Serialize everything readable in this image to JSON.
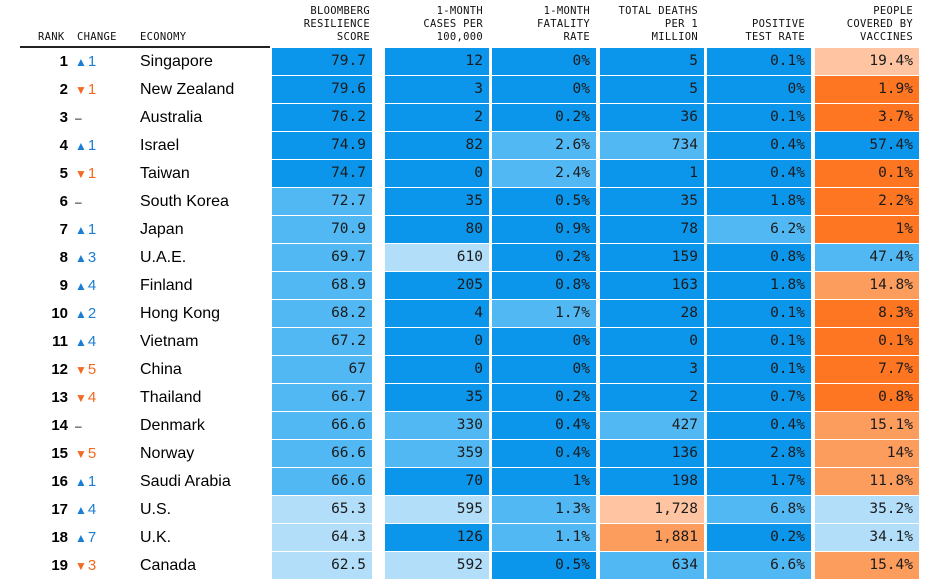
{
  "headers": {
    "rank": "RANK",
    "change": "CHANGE",
    "economy": "ECONOMY",
    "score": "BLOOMBERG\nRESILIENCE\nSCORE",
    "cases": "1-MONTH\nCASES PER\n100,000",
    "fatality": "1-MONTH\nFATALITY\nRATE",
    "deaths": "TOTAL DEATHS\nPER 1\nMILLION",
    "positive": "POSITIVE\nTEST RATE",
    "vaccines": "PEOPLE\nCOVERED BY\nVACCINES"
  },
  "colors": {
    "blue_dark": "#0b96ec",
    "blue_mid": "#52b8f4",
    "blue_light": "#b2def9",
    "orange_dark": "#fe7622",
    "orange_mid": "#fc9d5e",
    "orange_light": "#ffc5a2",
    "up": "#1a7fd4",
    "down": "#f26b21"
  },
  "rows": [
    {
      "rank": "1",
      "dir": "up",
      "chg": "1",
      "economy": "Singapore",
      "score": "79.7",
      "cases": "12",
      "fatality": "0%",
      "deaths": "5",
      "positive": "0.1%",
      "vaccines": "19.4%",
      "shades": [
        "blue_dark",
        "blue_dark",
        "blue_dark",
        "blue_dark",
        "blue_dark",
        "orange_light"
      ]
    },
    {
      "rank": "2",
      "dir": "down",
      "chg": "1",
      "economy": "New Zealand",
      "score": "79.6",
      "cases": "3",
      "fatality": "0%",
      "deaths": "5",
      "positive": "0%",
      "vaccines": "1.9%",
      "shades": [
        "blue_dark",
        "blue_dark",
        "blue_dark",
        "blue_dark",
        "blue_dark",
        "orange_dark"
      ]
    },
    {
      "rank": "3",
      "dir": "same",
      "chg": "",
      "economy": "Australia",
      "score": "76.2",
      "cases": "2",
      "fatality": "0.2%",
      "deaths": "36",
      "positive": "0.1%",
      "vaccines": "3.7%",
      "shades": [
        "blue_dark",
        "blue_dark",
        "blue_dark",
        "blue_dark",
        "blue_dark",
        "orange_dark"
      ]
    },
    {
      "rank": "4",
      "dir": "up",
      "chg": "1",
      "economy": "Israel",
      "score": "74.9",
      "cases": "82",
      "fatality": "2.6%",
      "deaths": "734",
      "positive": "0.4%",
      "vaccines": "57.4%",
      "shades": [
        "blue_dark",
        "blue_dark",
        "blue_mid",
        "blue_mid",
        "blue_dark",
        "blue_dark"
      ]
    },
    {
      "rank": "5",
      "dir": "down",
      "chg": "1",
      "economy": "Taiwan",
      "score": "74.7",
      "cases": "0",
      "fatality": "2.4%",
      "deaths": "1",
      "positive": "0.4%",
      "vaccines": "0.1%",
      "shades": [
        "blue_dark",
        "blue_dark",
        "blue_mid",
        "blue_dark",
        "blue_dark",
        "orange_dark"
      ]
    },
    {
      "rank": "6",
      "dir": "same",
      "chg": "",
      "economy": "South Korea",
      "score": "72.7",
      "cases": "35",
      "fatality": "0.5%",
      "deaths": "35",
      "positive": "1.8%",
      "vaccines": "2.2%",
      "shades": [
        "blue_mid",
        "blue_dark",
        "blue_dark",
        "blue_dark",
        "blue_dark",
        "orange_dark"
      ]
    },
    {
      "rank": "7",
      "dir": "up",
      "chg": "1",
      "economy": "Japan",
      "score": "70.9",
      "cases": "80",
      "fatality": "0.9%",
      "deaths": "78",
      "positive": "6.2%",
      "vaccines": "1%",
      "shades": [
        "blue_mid",
        "blue_dark",
        "blue_dark",
        "blue_dark",
        "blue_mid",
        "orange_dark"
      ]
    },
    {
      "rank": "8",
      "dir": "up",
      "chg": "3",
      "economy": "U.A.E.",
      "score": "69.7",
      "cases": "610",
      "fatality": "0.2%",
      "deaths": "159",
      "positive": "0.8%",
      "vaccines": "47.4%",
      "shades": [
        "blue_mid",
        "blue_light",
        "blue_dark",
        "blue_dark",
        "blue_dark",
        "blue_mid"
      ]
    },
    {
      "rank": "9",
      "dir": "up",
      "chg": "4",
      "economy": "Finland",
      "score": "68.9",
      "cases": "205",
      "fatality": "0.8%",
      "deaths": "163",
      "positive": "1.8%",
      "vaccines": "14.8%",
      "shades": [
        "blue_mid",
        "blue_dark",
        "blue_dark",
        "blue_dark",
        "blue_dark",
        "orange_mid"
      ]
    },
    {
      "rank": "10",
      "dir": "up",
      "chg": "2",
      "economy": "Hong Kong",
      "score": "68.2",
      "cases": "4",
      "fatality": "1.7%",
      "deaths": "28",
      "positive": "0.1%",
      "vaccines": "8.3%",
      "shades": [
        "blue_mid",
        "blue_dark",
        "blue_mid",
        "blue_dark",
        "blue_dark",
        "orange_dark"
      ]
    },
    {
      "rank": "11",
      "dir": "up",
      "chg": "4",
      "economy": "Vietnam",
      "score": "67.2",
      "cases": "0",
      "fatality": "0%",
      "deaths": "0",
      "positive": "0.1%",
      "vaccines": "0.1%",
      "shades": [
        "blue_mid",
        "blue_dark",
        "blue_dark",
        "blue_dark",
        "blue_dark",
        "orange_dark"
      ]
    },
    {
      "rank": "12",
      "dir": "down",
      "chg": "5",
      "economy": "China",
      "score": "67",
      "cases": "0",
      "fatality": "0%",
      "deaths": "3",
      "positive": "0.1%",
      "vaccines": "7.7%",
      "shades": [
        "blue_mid",
        "blue_dark",
        "blue_dark",
        "blue_dark",
        "blue_dark",
        "orange_dark"
      ]
    },
    {
      "rank": "13",
      "dir": "down",
      "chg": "4",
      "economy": "Thailand",
      "score": "66.7",
      "cases": "35",
      "fatality": "0.2%",
      "deaths": "2",
      "positive": "0.7%",
      "vaccines": "0.8%",
      "shades": [
        "blue_mid",
        "blue_dark",
        "blue_dark",
        "blue_dark",
        "blue_dark",
        "orange_dark"
      ]
    },
    {
      "rank": "14",
      "dir": "same",
      "chg": "",
      "economy": "Denmark",
      "score": "66.6",
      "cases": "330",
      "fatality": "0.4%",
      "deaths": "427",
      "positive": "0.4%",
      "vaccines": "15.1%",
      "shades": [
        "blue_mid",
        "blue_mid",
        "blue_dark",
        "blue_mid",
        "blue_dark",
        "orange_mid"
      ]
    },
    {
      "rank": "15",
      "dir": "down",
      "chg": "5",
      "economy": "Norway",
      "score": "66.6",
      "cases": "359",
      "fatality": "0.4%",
      "deaths": "136",
      "positive": "2.8%",
      "vaccines": "14%",
      "shades": [
        "blue_mid",
        "blue_mid",
        "blue_dark",
        "blue_dark",
        "blue_dark",
        "orange_mid"
      ]
    },
    {
      "rank": "16",
      "dir": "up",
      "chg": "1",
      "economy": "Saudi Arabia",
      "score": "66.6",
      "cases": "70",
      "fatality": "1%",
      "deaths": "198",
      "positive": "1.7%",
      "vaccines": "11.8%",
      "shades": [
        "blue_mid",
        "blue_dark",
        "blue_dark",
        "blue_dark",
        "blue_dark",
        "orange_mid"
      ]
    },
    {
      "rank": "17",
      "dir": "up",
      "chg": "4",
      "economy": "U.S.",
      "score": "65.3",
      "cases": "595",
      "fatality": "1.3%",
      "deaths": "1,728",
      "positive": "6.8%",
      "vaccines": "35.2%",
      "shades": [
        "blue_light",
        "blue_light",
        "blue_mid",
        "orange_light",
        "blue_mid",
        "blue_light"
      ]
    },
    {
      "rank": "18",
      "dir": "up",
      "chg": "7",
      "economy": "U.K.",
      "score": "64.3",
      "cases": "126",
      "fatality": "1.1%",
      "deaths": "1,881",
      "positive": "0.2%",
      "vaccines": "34.1%",
      "shades": [
        "blue_light",
        "blue_dark",
        "blue_mid",
        "orange_mid",
        "blue_dark",
        "blue_light"
      ]
    },
    {
      "rank": "19",
      "dir": "down",
      "chg": "3",
      "economy": "Canada",
      "score": "62.5",
      "cases": "592",
      "fatality": "0.5%",
      "deaths": "634",
      "positive": "6.6%",
      "vaccines": "15.4%",
      "shades": [
        "blue_light",
        "blue_light",
        "blue_dark",
        "blue_mid",
        "blue_mid",
        "orange_mid"
      ]
    }
  ]
}
